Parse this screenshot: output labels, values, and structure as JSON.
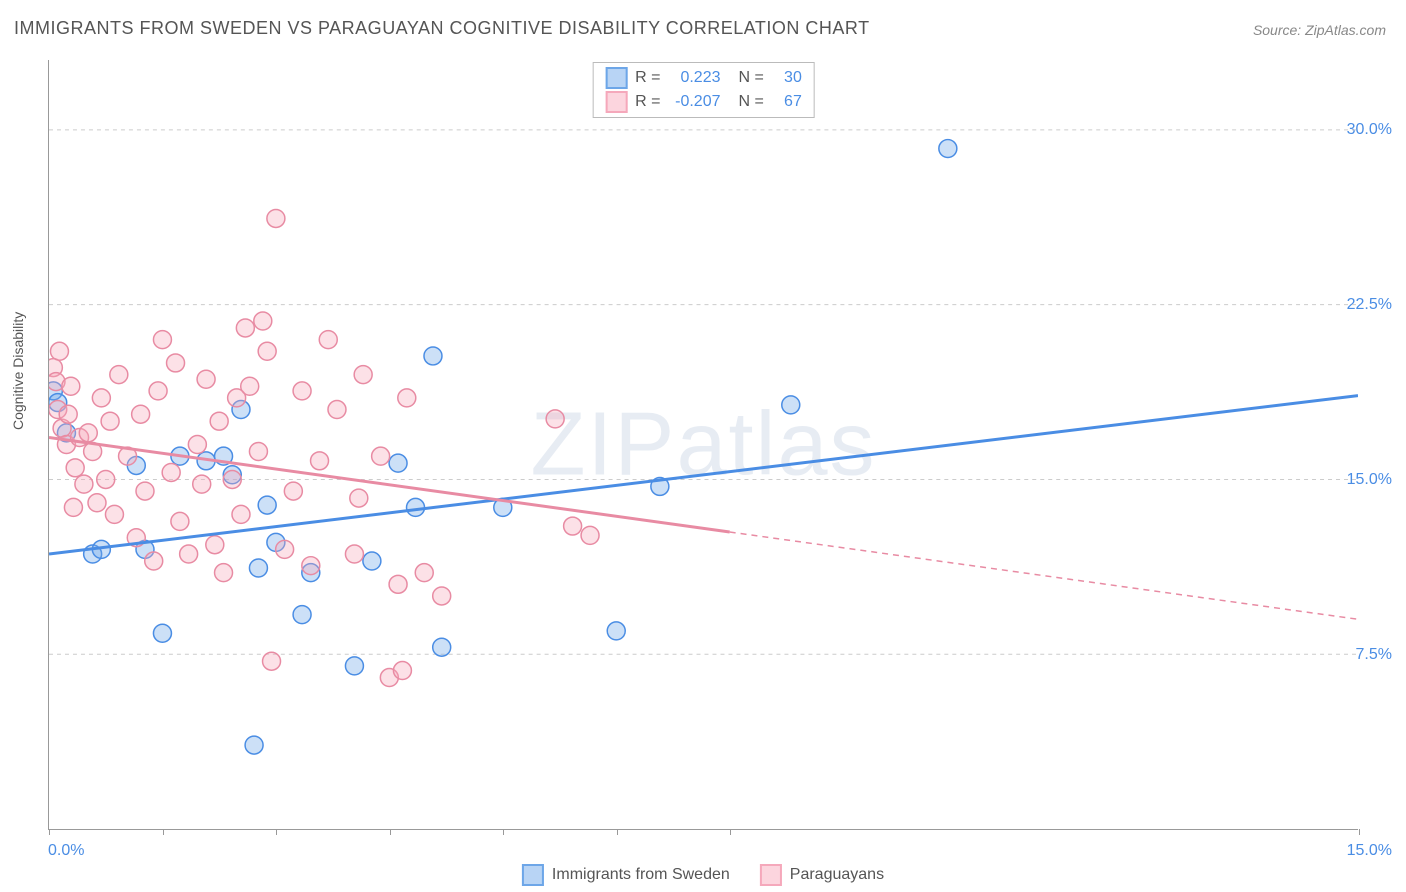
{
  "title": "IMMIGRANTS FROM SWEDEN VS PARAGUAYAN COGNITIVE DISABILITY CORRELATION CHART",
  "source": "Source: ZipAtlas.com",
  "watermark": "ZIPatlas",
  "yaxis_label": "Cognitive Disability",
  "chart": {
    "type": "scatter",
    "background_color": "#ffffff",
    "grid_color": "#cccccc",
    "axis_color": "#999999",
    "xlim": [
      0,
      15
    ],
    "ylim": [
      0,
      33
    ],
    "xtick_positions": [
      0,
      1.3,
      2.6,
      3.9,
      5.2,
      6.5,
      7.8,
      15
    ],
    "xtick_labels_left": "0.0%",
    "xtick_labels_right": "15.0%",
    "ytick_positions": [
      7.5,
      15.0,
      22.5,
      30.0
    ],
    "ytick_labels": [
      "7.5%",
      "15.0%",
      "22.5%",
      "30.0%"
    ],
    "marker_radius": 9,
    "marker_stroke_width": 1.5,
    "marker_fill_opacity": 0.35,
    "series": [
      {
        "name": "Immigrants from Sweden",
        "color": "#6da6e8",
        "stroke": "#4a8de4",
        "R": "0.223",
        "N": "30",
        "regression": {
          "x1": 0,
          "y1": 11.8,
          "x2": 15,
          "y2": 18.6,
          "solid_to_x": 15
        },
        "points": [
          [
            0.05,
            18.8
          ],
          [
            0.1,
            18.3
          ],
          [
            0.5,
            11.8
          ],
          [
            0.6,
            12.0
          ],
          [
            1.0,
            15.6
          ],
          [
            1.1,
            12.0
          ],
          [
            1.3,
            8.4
          ],
          [
            1.5,
            16.0
          ],
          [
            1.8,
            15.8
          ],
          [
            2.0,
            16.0
          ],
          [
            2.1,
            15.2
          ],
          [
            2.2,
            18.0
          ],
          [
            2.35,
            3.6
          ],
          [
            2.4,
            11.2
          ],
          [
            2.5,
            13.9
          ],
          [
            2.6,
            12.3
          ],
          [
            2.9,
            9.2
          ],
          [
            3.0,
            11.0
          ],
          [
            3.5,
            7.0
          ],
          [
            3.7,
            11.5
          ],
          [
            4.0,
            15.7
          ],
          [
            4.2,
            13.8
          ],
          [
            4.4,
            20.3
          ],
          [
            4.5,
            7.8
          ],
          [
            5.2,
            13.8
          ],
          [
            6.5,
            8.5
          ],
          [
            7.0,
            14.7
          ],
          [
            8.5,
            18.2
          ],
          [
            10.3,
            29.2
          ],
          [
            0.2,
            17.0
          ]
        ]
      },
      {
        "name": "Paraguayans",
        "color": "#f5a8bb",
        "stroke": "#e88ba3",
        "R": "-0.207",
        "N": "67",
        "regression": {
          "x1": 0,
          "y1": 16.8,
          "x2": 15,
          "y2": 9.0,
          "solid_to_x": 7.8
        },
        "points": [
          [
            0.05,
            19.8
          ],
          [
            0.08,
            19.2
          ],
          [
            0.1,
            18.0
          ],
          [
            0.15,
            17.2
          ],
          [
            0.2,
            16.5
          ],
          [
            0.22,
            17.8
          ],
          [
            0.25,
            19.0
          ],
          [
            0.3,
            15.5
          ],
          [
            0.35,
            16.8
          ],
          [
            0.4,
            14.8
          ],
          [
            0.45,
            17.0
          ],
          [
            0.5,
            16.2
          ],
          [
            0.55,
            14.0
          ],
          [
            0.6,
            18.5
          ],
          [
            0.65,
            15.0
          ],
          [
            0.7,
            17.5
          ],
          [
            0.75,
            13.5
          ],
          [
            0.8,
            19.5
          ],
          [
            0.9,
            16.0
          ],
          [
            1.0,
            12.5
          ],
          [
            1.05,
            17.8
          ],
          [
            1.1,
            14.5
          ],
          [
            1.2,
            11.5
          ],
          [
            1.25,
            18.8
          ],
          [
            1.3,
            21.0
          ],
          [
            1.4,
            15.3
          ],
          [
            1.45,
            20.0
          ],
          [
            1.5,
            13.2
          ],
          [
            1.6,
            11.8
          ],
          [
            1.7,
            16.5
          ],
          [
            1.75,
            14.8
          ],
          [
            1.8,
            19.3
          ],
          [
            1.9,
            12.2
          ],
          [
            1.95,
            17.5
          ],
          [
            2.0,
            11.0
          ],
          [
            2.1,
            15.0
          ],
          [
            2.15,
            18.5
          ],
          [
            2.2,
            13.5
          ],
          [
            2.25,
            21.5
          ],
          [
            2.3,
            19.0
          ],
          [
            2.4,
            16.2
          ],
          [
            2.45,
            21.8
          ],
          [
            2.5,
            20.5
          ],
          [
            2.55,
            7.2
          ],
          [
            2.6,
            26.2
          ],
          [
            2.7,
            12.0
          ],
          [
            2.8,
            14.5
          ],
          [
            2.9,
            18.8
          ],
          [
            3.0,
            11.3
          ],
          [
            3.1,
            15.8
          ],
          [
            3.2,
            21.0
          ],
          [
            3.3,
            18.0
          ],
          [
            3.5,
            11.8
          ],
          [
            3.55,
            14.2
          ],
          [
            3.6,
            19.5
          ],
          [
            3.8,
            16.0
          ],
          [
            3.9,
            6.5
          ],
          [
            4.0,
            10.5
          ],
          [
            4.05,
            6.8
          ],
          [
            4.1,
            18.5
          ],
          [
            4.3,
            11.0
          ],
          [
            4.5,
            10.0
          ],
          [
            5.8,
            17.6
          ],
          [
            6.0,
            13.0
          ],
          [
            6.2,
            12.6
          ],
          [
            0.12,
            20.5
          ],
          [
            0.28,
            13.8
          ]
        ]
      }
    ]
  },
  "legend_top": {
    "rows": [
      {
        "swatch_fill": "#b8d4f5",
        "swatch_border": "#6da6e8",
        "r_label": "R =",
        "r_val": "0.223",
        "n_label": "N =",
        "n_val": "30"
      },
      {
        "swatch_fill": "#fcd5de",
        "swatch_border": "#f5a8bb",
        "r_label": "R =",
        "r_val": "-0.207",
        "n_label": "N =",
        "n_val": "67"
      }
    ]
  },
  "legend_bottom": {
    "items": [
      {
        "swatch_fill": "#b8d4f5",
        "swatch_border": "#6da6e8",
        "label": "Immigrants from Sweden"
      },
      {
        "swatch_fill": "#fcd5de",
        "swatch_border": "#f5a8bb",
        "label": "Paraguayans"
      }
    ]
  }
}
